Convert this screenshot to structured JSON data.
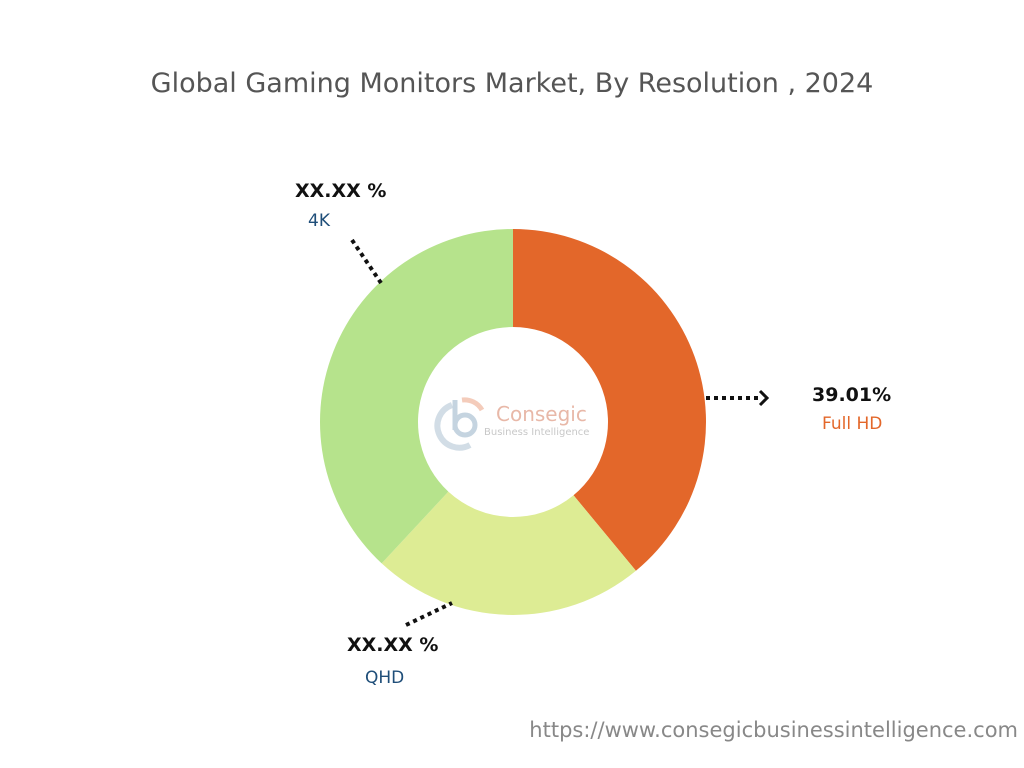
{
  "chart_data": {
    "type": "pie",
    "variant": "donut",
    "title": "Global Gaming Monitors Market, By Resolution , 2024",
    "slices": [
      {
        "name": "Full HD",
        "value": 39.01,
        "label": "39.01%",
        "color": "#E3672A"
      },
      {
        "name": "QHD",
        "value": 22.9,
        "label": "XX.XX %",
        "color": "#DDEC94"
      },
      {
        "name": "4K",
        "value": 38.09,
        "label": "XX.XX %",
        "color": "#B6E38C"
      }
    ],
    "label_colors": {
      "Full HD": "#E3672A",
      "QHD": "#1F4E79",
      "4K": "#1F4E79"
    }
  },
  "logo": {
    "name": "Consegic",
    "tagline": "Business Intelligence"
  },
  "footer": {
    "url": "https://www.consegicbusinessintelligence.com"
  }
}
